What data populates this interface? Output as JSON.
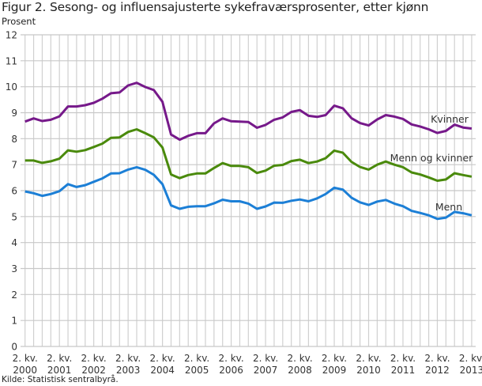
{
  "chart_data": {
    "type": "line",
    "title": "Figur 2. Sesong- og influensajusterte sykefraværsprosenter, etter kjønn",
    "ylabel": "Prosent",
    "xlabel": "",
    "ylim": [
      0,
      12
    ],
    "yticks": [
      "0",
      "1",
      "2",
      "3",
      "4",
      "5",
      "6",
      "7",
      "8",
      "9",
      "10",
      "11",
      "12"
    ],
    "grid": true,
    "x_start": "2. kv. 2000",
    "x_step": "quarter",
    "xtick_labels": [
      {
        "line1": "2. kv.",
        "line2": "2000"
      },
      {
        "line1": "2. kv.",
        "line2": "2001"
      },
      {
        "line1": "2. kv.",
        "line2": "2002"
      },
      {
        "line1": "2. kv.",
        "line2": "2003"
      },
      {
        "line1": "2. kv.",
        "line2": "2004"
      },
      {
        "line1": "2. kv.",
        "line2": "2005"
      },
      {
        "line1": "2. kv.",
        "line2": "2006"
      },
      {
        "line1": "2. kv.",
        "line2": "2007"
      },
      {
        "line1": "2. kv.",
        "line2": "2008"
      },
      {
        "line1": "2. kv.",
        "line2": "2009"
      },
      {
        "line1": "2. kv.",
        "line2": "2010"
      },
      {
        "line1": "2. kv.",
        "line2": "2011"
      },
      {
        "line1": "2. kv.",
        "line2": "2012"
      },
      {
        "line1": "2. kv.",
        "line2": "2013"
      }
    ],
    "series": [
      {
        "name": "Kvinner",
        "color": "#76198a",
        "values": [
          8.66,
          8.78,
          8.68,
          8.73,
          8.86,
          9.24,
          9.24,
          9.29,
          9.38,
          9.54,
          9.75,
          9.78,
          10.05,
          10.15,
          9.99,
          9.87,
          9.42,
          8.16,
          7.96,
          8.11,
          8.21,
          8.21,
          8.59,
          8.78,
          8.67,
          8.66,
          8.64,
          8.42,
          8.53,
          8.73,
          8.82,
          9.03,
          9.1,
          8.88,
          8.84,
          8.91,
          9.27,
          9.17,
          8.79,
          8.6,
          8.51,
          8.74,
          8.91,
          8.85,
          8.76,
          8.55,
          8.47,
          8.36,
          8.22,
          8.3,
          8.54,
          8.43,
          8.39
        ]
      },
      {
        "name": "Menn og kvinner",
        "color": "#4a8a0c",
        "values": [
          7.16,
          7.16,
          7.07,
          7.13,
          7.23,
          7.55,
          7.5,
          7.56,
          7.68,
          7.81,
          8.03,
          8.05,
          8.26,
          8.36,
          8.21,
          8.05,
          7.66,
          6.62,
          6.48,
          6.6,
          6.66,
          6.66,
          6.87,
          7.06,
          6.95,
          6.95,
          6.9,
          6.68,
          6.77,
          6.96,
          6.99,
          7.14,
          7.19,
          7.06,
          7.12,
          7.25,
          7.54,
          7.46,
          7.11,
          6.91,
          6.81,
          7.0,
          7.12,
          7.0,
          6.9,
          6.7,
          6.62,
          6.51,
          6.38,
          6.43,
          6.67,
          6.6,
          6.54
        ]
      },
      {
        "name": "Menn",
        "color": "#1c7fd6",
        "values": [
          5.97,
          5.9,
          5.8,
          5.87,
          5.98,
          6.25,
          6.14,
          6.21,
          6.34,
          6.47,
          6.66,
          6.67,
          6.81,
          6.9,
          6.8,
          6.61,
          6.25,
          5.43,
          5.3,
          5.38,
          5.4,
          5.4,
          5.51,
          5.65,
          5.59,
          5.59,
          5.5,
          5.3,
          5.39,
          5.54,
          5.53,
          5.61,
          5.66,
          5.59,
          5.7,
          5.87,
          6.11,
          6.04,
          5.73,
          5.55,
          5.45,
          5.58,
          5.64,
          5.5,
          5.4,
          5.22,
          5.14,
          5.05,
          4.91,
          4.96,
          5.18,
          5.13,
          5.05
        ]
      }
    ],
    "legend": "inline-right",
    "source": "Kilde: Statistisk sentralbyrå."
  }
}
